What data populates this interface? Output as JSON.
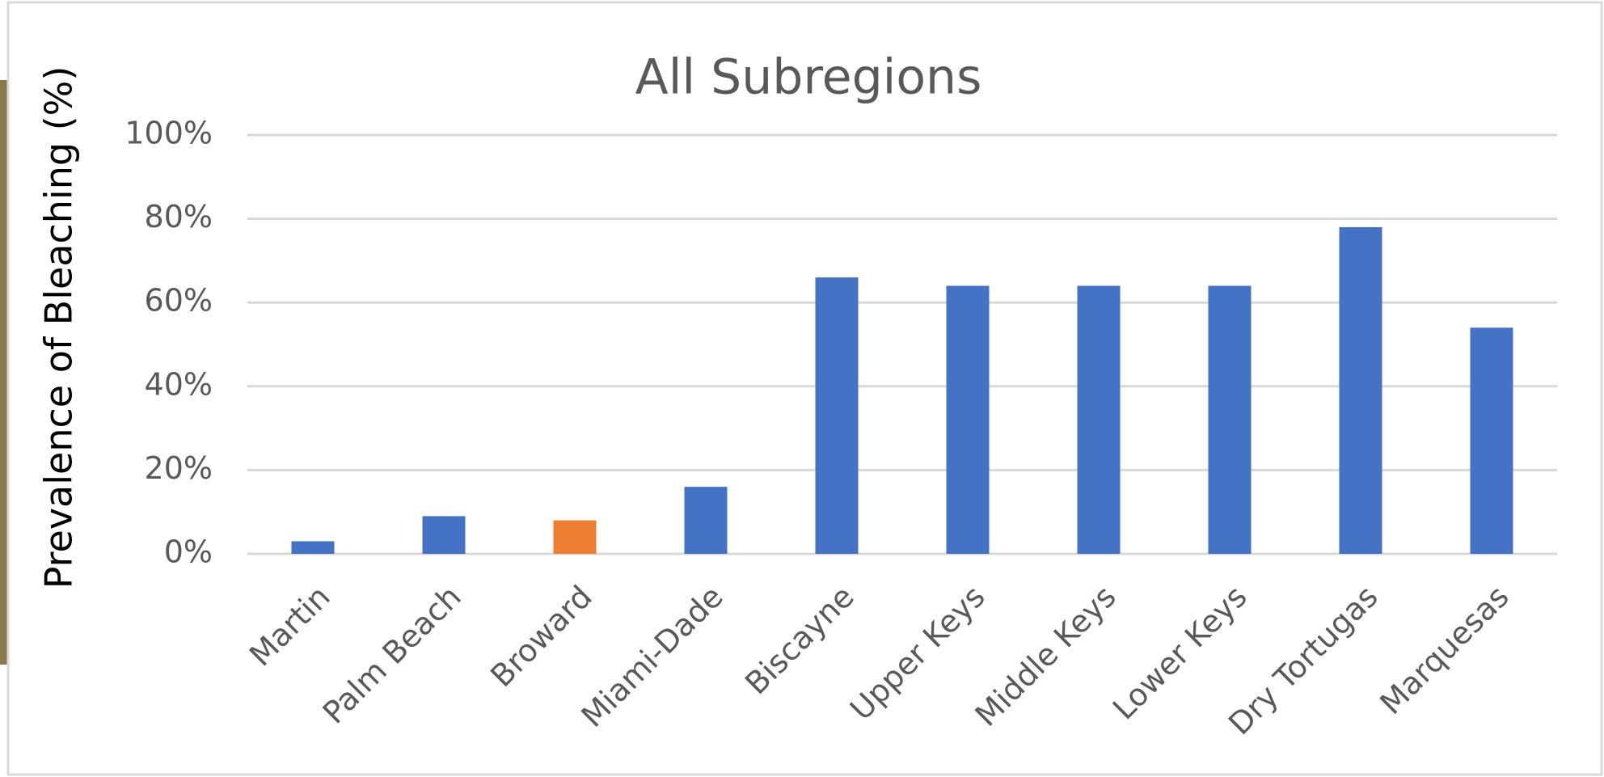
{
  "chart_data": {
    "type": "bar",
    "title": "All Subregions",
    "y_label": "Prevalence of Bleaching (%)",
    "categories": [
      "Martin",
      "Palm Beach",
      "Broward",
      "Miami-Dade",
      "Biscayne",
      "Upper Keys",
      "Middle Keys",
      "Lower Keys",
      "Dry Tortugas",
      "Marquesas"
    ],
    "values": [
      3,
      9,
      8,
      16,
      66,
      64,
      64,
      64,
      78,
      54
    ],
    "colors": [
      "#4472c4",
      "#4472c4",
      "#ed7d31",
      "#4472c4",
      "#4472c4",
      "#4472c4",
      "#4472c4",
      "#4472c4",
      "#4472c4",
      "#4472c4"
    ],
    "ylim": [
      0,
      100
    ],
    "yticks": [
      {
        "value": 0,
        "label": "0%"
      },
      {
        "value": 20,
        "label": "20%"
      },
      {
        "value": 40,
        "label": "40%"
      },
      {
        "value": 60,
        "label": "60%"
      },
      {
        "value": 80,
        "label": "80%"
      },
      {
        "value": 100,
        "label": "100%"
      }
    ],
    "grid": true
  }
}
